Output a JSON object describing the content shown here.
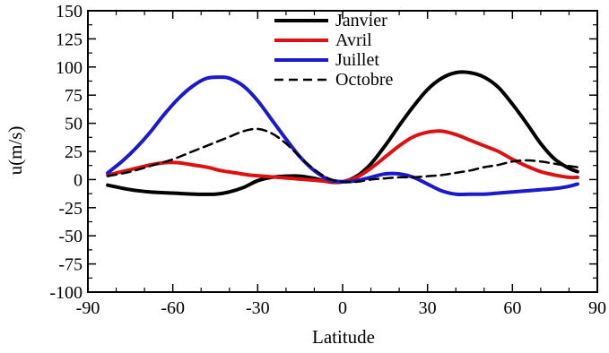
{
  "chart_data": {
    "type": "line",
    "xlabel": "Latitude",
    "ylabel": "u(m/s)",
    "xlim": [
      -90,
      90
    ],
    "ylim": [
      -100,
      150
    ],
    "x_ticks": [
      -90,
      -60,
      -30,
      0,
      30,
      60,
      90
    ],
    "y_ticks": [
      -100,
      -75,
      -50,
      -25,
      0,
      25,
      50,
      75,
      100,
      125,
      150
    ],
    "grid": false,
    "legend_position": "top-center",
    "series": [
      {
        "name": "Janvier",
        "color": "#000000",
        "dash": "solid",
        "x": [
          -83,
          -75,
          -68,
          -60,
          -52,
          -45,
          -40,
          -35,
          -30,
          -25,
          -20,
          -15,
          -10,
          -5,
          0,
          5,
          10,
          15,
          20,
          25,
          30,
          35,
          40,
          45,
          50,
          55,
          60,
          65,
          70,
          75,
          80,
          83
        ],
        "y": [
          -5,
          -9,
          -11,
          -12,
          -13,
          -13,
          -11,
          -7,
          -1,
          2,
          3,
          3,
          1,
          -2,
          -2,
          3,
          14,
          30,
          48,
          65,
          80,
          90,
          95,
          95,
          91,
          82,
          67,
          50,
          32,
          18,
          10,
          7
        ]
      },
      {
        "name": "Avril",
        "color": "#dd1111",
        "dash": "solid",
        "x": [
          -83,
          -78,
          -73,
          -68,
          -63,
          -58,
          -53,
          -48,
          -43,
          -38,
          -33,
          -28,
          -23,
          -18,
          -13,
          -8,
          -3,
          0,
          5,
          10,
          15,
          20,
          25,
          30,
          35,
          40,
          45,
          50,
          55,
          60,
          65,
          70,
          75,
          80,
          83
        ],
        "y": [
          4,
          7,
          10,
          13,
          15,
          15,
          13,
          11,
          8,
          6,
          4,
          3,
          2,
          1,
          0,
          -1,
          -2,
          -2,
          2,
          10,
          20,
          30,
          38,
          42,
          43,
          40,
          35,
          30,
          25,
          18,
          12,
          7,
          4,
          2,
          2
        ]
      },
      {
        "name": "Juillet",
        "color": "#1a1acc",
        "dash": "solid",
        "x": [
          -83,
          -78,
          -73,
          -68,
          -63,
          -58,
          -53,
          -48,
          -43,
          -40,
          -35,
          -30,
          -25,
          -20,
          -15,
          -10,
          -5,
          0,
          5,
          10,
          15,
          20,
          25,
          30,
          35,
          40,
          45,
          50,
          55,
          60,
          65,
          70,
          75,
          80,
          83
        ],
        "y": [
          6,
          16,
          28,
          42,
          58,
          72,
          83,
          90,
          91,
          90,
          83,
          70,
          53,
          36,
          20,
          8,
          0,
          -2,
          -1,
          2,
          5,
          5,
          2,
          -4,
          -10,
          -13,
          -13,
          -13,
          -12,
          -11,
          -10,
          -9,
          -8,
          -6,
          -4
        ]
      },
      {
        "name": "Octobre",
        "color": "#000000",
        "dash": "dashed",
        "x": [
          -83,
          -75,
          -68,
          -60,
          -53,
          -45,
          -40,
          -35,
          -30,
          -25,
          -20,
          -15,
          -10,
          -5,
          0,
          5,
          10,
          15,
          20,
          25,
          30,
          35,
          40,
          45,
          50,
          55,
          60,
          65,
          70,
          75,
          80,
          83
        ],
        "y": [
          3,
          7,
          12,
          18,
          25,
          33,
          38,
          43,
          45,
          41,
          32,
          20,
          9,
          1,
          -2,
          -2,
          0,
          1,
          2,
          2,
          3,
          4,
          6,
          8,
          11,
          13,
          16,
          17,
          16,
          14,
          12,
          11
        ]
      }
    ]
  }
}
